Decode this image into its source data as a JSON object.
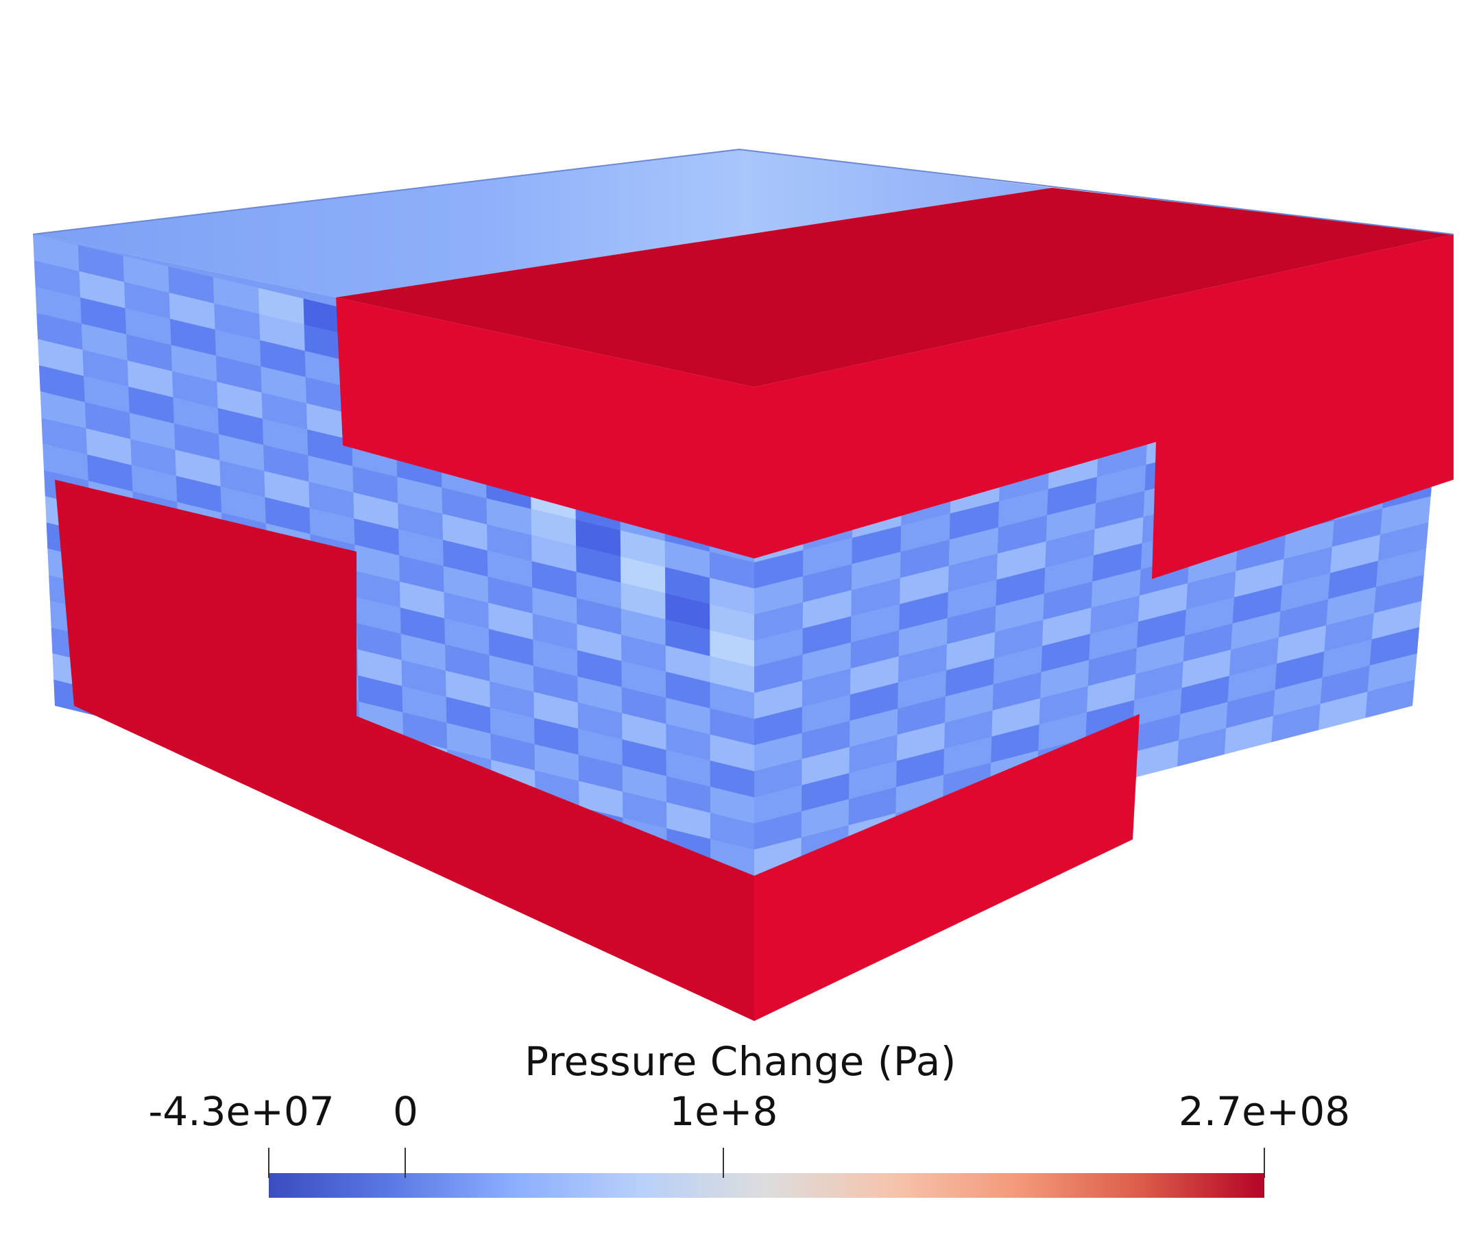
{
  "scalar_bar": {
    "title": "Pressure Change (Pa)",
    "min_value": -43000000,
    "max_value": 270000000,
    "ticks": [
      {
        "value": -43000000,
        "label": "-4.3e+07"
      },
      {
        "value": 0,
        "label": "0"
      },
      {
        "value": 100000000,
        "label": "1e+8"
      },
      {
        "value": 270000000,
        "label": "2.7e+08"
      }
    ],
    "colormap": [
      "#3b4cc0",
      "#5b7ae5",
      "#8db0fe",
      "#b9d0f9",
      "#dddddd",
      "#f5c4ad",
      "#f49a7b",
      "#dc5d4a",
      "#b40426"
    ]
  },
  "colors": {
    "red_high": "#e0082e",
    "red_top": "#c40527",
    "blue_base": "#7899f5",
    "blue_dark": "#4f6aea",
    "blue_light": "#b7d2fb"
  }
}
